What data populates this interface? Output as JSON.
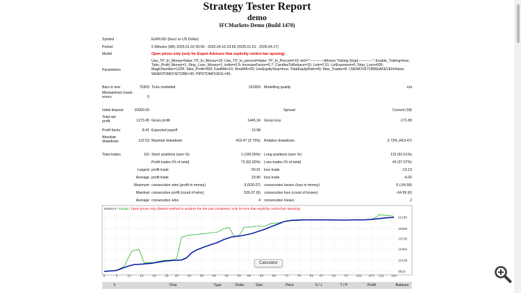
{
  "header": {
    "title": "Strategy Tester Report",
    "subtitle": "demo",
    "server": "IFCMarkets-Demo (Build 1470)"
  },
  "info": {
    "symbol_label": "Symbol",
    "symbol": "EURUSD (Euro vs US Dollar)",
    "period_label": "Period",
    "period": "5 Minutes (M5) 2025.01.02 00:00 - 2026.04.16 23:59 (2025.01.01 - 2026.04.17)",
    "model_label": "Model",
    "model": "Open prices only (only for Expert Advisors that explicitly control bar opening)",
    "params_label": "Parameters",
    "params": "Use_TP_In_Money=false; TP_In_Money=10; Use_TP_In_percent=false; TP_In_Percent=10; txt2=\"------------[Money Trailing Stop]------------\"; Enable_Trailing=true; Take_Profit_Money=1; Stop_Loss_Money=1; index=0.9; IncreaseFactor=0.7; CandlesToRetrace=10; Lots=0.01; LotExponent=0; Stop_Loss=600; MagicNumber=1234; Take_Profit=600; FastMA=10; SlowMA=20; UseEquityStop=true; TotalEquityRisk=40; Max_Trades=8; USEMOVETOBREAKEVEN=false; WHENTOMOVETOBE=30; PIPSTOMOVESL=30;"
  },
  "stats": {
    "bars_label": "Bars in test",
    "bars": "76303",
    "ticks_label": "Ticks modelled",
    "ticks": "151993",
    "quality_label": "Modelling quality",
    "quality": "n/a",
    "mismatch_label": "Mismatched charts errors",
    "mismatch": "0",
    "deposit_label": "Initial deposit",
    "deposit": "10000.00",
    "spread_label": "Spread",
    "spread": "Current (18)",
    "netprofit_label": "Total net profit",
    "netprofit": "1273.45",
    "grossprofit_label": "Gross profit",
    "grossprofit": "1445.34",
    "grossloss_label": "Gross loss",
    "grossloss": "-171.89",
    "pf_label": "Profit factor",
    "pf": "8.41",
    "payoff_label": "Expected payoff",
    "payoff": "10.98",
    "absdd_label": "Absolute drawdown",
    "absdd": "122.53",
    "maxdd_label": "Maximal drawdown",
    "maxdd": "419.47 (3.73%)",
    "reldd_label": "Relative drawdown",
    "reldd": "3.73% (419.47)",
    "trades_label": "Total trades",
    "trades": "116",
    "short_label": "Short positions (won %)",
    "short": "1 (100.00%)",
    "long_label": "Long positions (won %)",
    "long": "115 (62.61%)",
    "ptrades_label": "Profit trades (% of total)",
    "ptrades": "73 (62.93%)",
    "ltrades_label": "Loss trades (% of total)",
    "ltrades": "43 (37.07%)",
    "largest_label": "Largest",
    "largest_p_label": "profit trade",
    "largest_p": "59.01",
    "largest_l_label": "loss trade",
    "largest_l": "-13.13",
    "average_label": "Average",
    "average_p_label": "profit trade",
    "average_p": "19.80",
    "average_l_label": "loss trade",
    "average_l": "-4.00",
    "maximum_label": "Maximum",
    "max_wins_label": "consecutive wins (profit in money)",
    "max_wins": "9 (526.07)",
    "max_losses_label": "consecutive losses (loss in money)",
    "max_losses": "6 (-64.99)",
    "maximal_label": "Maximal",
    "maximal_p_label": "consecutive profit (count of wins)",
    "maximal_p": "526.07 (9)",
    "maximal_l_label": "consecutive loss (count of losses)",
    "maximal_l": "-64.99 (6)",
    "avgc_label": "Average",
    "avgc_w_label": "consecutive wins",
    "avgc_w": "4",
    "avgc_l_label": "consecutive losses",
    "avgc_l": "2"
  },
  "chart_data": {
    "type": "line",
    "legend_balance": "Balance",
    "legend_equity": "Equity",
    "legend_note": "Open prices only (fastest method to analyze the bar just completed, only for EAs that explicitly control bar opening)",
    "xticks": [
      "0",
      "5",
      "10",
      "15",
      "20",
      "25",
      "29",
      "34",
      "39",
      "44",
      "49",
      "54",
      "58",
      "63",
      "68",
      "73",
      "78",
      "83",
      "87",
      "92",
      "97",
      "102",
      "107",
      "111",
      "116"
    ],
    "yticks": [
      "11230",
      "10955",
      "10720",
      "10464",
      "10198",
      "9933"
    ],
    "ylim": [
      9933,
      11365
    ],
    "xlim": [
      0,
      116
    ],
    "balance": [
      [
        0,
        9935
      ],
      [
        5,
        9960
      ],
      [
        9,
        10050
      ],
      [
        12,
        10100
      ],
      [
        15,
        10110
      ],
      [
        19,
        10130
      ],
      [
        24,
        10180
      ],
      [
        28,
        10200
      ],
      [
        31,
        10210
      ],
      [
        33,
        10260
      ],
      [
        35,
        10380
      ],
      [
        37,
        10450
      ],
      [
        40,
        10520
      ],
      [
        42,
        10560
      ],
      [
        45,
        10620
      ],
      [
        48,
        10700
      ],
      [
        51,
        10760
      ],
      [
        55,
        10790
      ],
      [
        59,
        10840
      ],
      [
        64,
        10940
      ],
      [
        67,
        11010
      ],
      [
        70,
        11080
      ],
      [
        72,
        11130
      ],
      [
        75,
        11160
      ],
      [
        80,
        11170
      ],
      [
        86,
        11170
      ],
      [
        90,
        11170
      ],
      [
        96,
        11165
      ],
      [
        100,
        11170
      ],
      [
        104,
        11170
      ],
      [
        107,
        11180
      ],
      [
        110,
        11200
      ],
      [
        113,
        11220
      ],
      [
        116,
        11230
      ]
    ],
    "equity": [
      [
        0,
        9935
      ],
      [
        5,
        9960
      ],
      [
        8,
        10060
      ],
      [
        11,
        10420
      ],
      [
        14,
        10460
      ],
      [
        16,
        10140
      ],
      [
        20,
        10150
      ],
      [
        24,
        10200
      ],
      [
        27,
        10210
      ],
      [
        29,
        10240
      ],
      [
        31,
        10760
      ],
      [
        34,
        10800
      ],
      [
        37,
        10820
      ],
      [
        40,
        10840
      ],
      [
        43,
        10860
      ],
      [
        45,
        10870
      ],
      [
        48,
        10960
      ],
      [
        50,
        10990
      ],
      [
        52,
        10780
      ],
      [
        54,
        10790
      ],
      [
        56,
        10995
      ],
      [
        59,
        11000
      ],
      [
        62,
        11020
      ],
      [
        64,
        11010
      ],
      [
        67,
        11090
      ],
      [
        70,
        11100
      ],
      [
        72,
        11120
      ],
      [
        74,
        11150
      ],
      [
        77,
        11150
      ],
      [
        80,
        11170
      ],
      [
        84,
        11170
      ],
      [
        88,
        11165
      ],
      [
        92,
        11165
      ],
      [
        96,
        11160
      ],
      [
        100,
        11170
      ],
      [
        104,
        11170
      ],
      [
        107,
        11180
      ],
      [
        109,
        11240
      ],
      [
        110,
        11290
      ],
      [
        113,
        11280
      ],
      [
        116,
        11260
      ]
    ],
    "grid": true,
    "balance_color": "#0b1ea8",
    "equity_color": "#11a511"
  },
  "tooltip": "Calculator",
  "table": {
    "headers": [
      "#",
      "Time",
      "Type",
      "Order",
      "Size",
      "Price",
      "S / L",
      "T / P",
      "Profit",
      "Balance"
    ]
  },
  "colors": {
    "model_text": "#e00000",
    "table_header": "#d9d9d9"
  }
}
